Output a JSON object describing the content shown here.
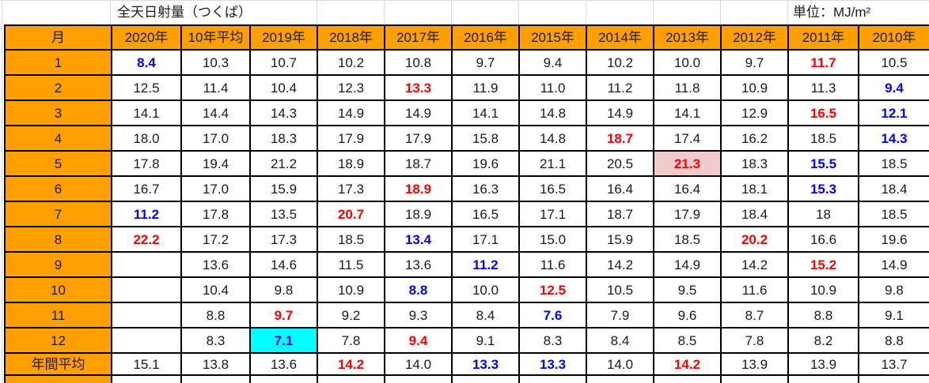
{
  "title": "全天日射量（つくば）",
  "unit_label": "単位：MJ/m²",
  "columns": [
    "月",
    "2020年",
    "10年平均",
    "2019年",
    "2018年",
    "2017年",
    "2016年",
    "2015年",
    "2014年",
    "2013年",
    "2012年",
    "2011年",
    "2010年"
  ],
  "rows": [
    {
      "label": "1",
      "cells": [
        [
          "8.4",
          "b"
        ],
        [
          "10.3",
          ""
        ],
        [
          "10.7",
          ""
        ],
        [
          "10.2",
          ""
        ],
        [
          "10.8",
          ""
        ],
        [
          "9.7",
          ""
        ],
        [
          "9.4",
          ""
        ],
        [
          "10.2",
          ""
        ],
        [
          "10.0",
          ""
        ],
        [
          "9.7",
          ""
        ],
        [
          "11.7",
          "r"
        ],
        [
          "10.5",
          ""
        ]
      ]
    },
    {
      "label": "2",
      "cells": [
        [
          "12.5",
          ""
        ],
        [
          "11.4",
          ""
        ],
        [
          "10.4",
          ""
        ],
        [
          "12.3",
          ""
        ],
        [
          "13.3",
          "r"
        ],
        [
          "11.9",
          ""
        ],
        [
          "11.0",
          ""
        ],
        [
          "11.2",
          ""
        ],
        [
          "11.8",
          ""
        ],
        [
          "10.9",
          ""
        ],
        [
          "11.3",
          ""
        ],
        [
          "9.4",
          "b"
        ]
      ]
    },
    {
      "label": "3",
      "cells": [
        [
          "14.1",
          ""
        ],
        [
          "14.4",
          ""
        ],
        [
          "14.3",
          ""
        ],
        [
          "14.9",
          ""
        ],
        [
          "14.9",
          ""
        ],
        [
          "14.1",
          ""
        ],
        [
          "14.8",
          ""
        ],
        [
          "14.9",
          ""
        ],
        [
          "14.1",
          ""
        ],
        [
          "12.9",
          ""
        ],
        [
          "16.5",
          "r"
        ],
        [
          "12.1",
          "b"
        ]
      ]
    },
    {
      "label": "4",
      "cells": [
        [
          "18.0",
          ""
        ],
        [
          "17.0",
          ""
        ],
        [
          "18.3",
          ""
        ],
        [
          "17.9",
          ""
        ],
        [
          "17.9",
          ""
        ],
        [
          "15.8",
          ""
        ],
        [
          "14.8",
          ""
        ],
        [
          "18.7",
          "r"
        ],
        [
          "17.4",
          ""
        ],
        [
          "16.2",
          ""
        ],
        [
          "18.5",
          ""
        ],
        [
          "14.3",
          "b"
        ]
      ]
    },
    {
      "label": "5",
      "cells": [
        [
          "17.8",
          ""
        ],
        [
          "19.4",
          ""
        ],
        [
          "21.2",
          ""
        ],
        [
          "18.9",
          ""
        ],
        [
          "18.7",
          ""
        ],
        [
          "19.6",
          ""
        ],
        [
          "21.1",
          ""
        ],
        [
          "20.5",
          ""
        ],
        [
          "21.3",
          "rp"
        ],
        [
          "18.3",
          ""
        ],
        [
          "15.5",
          "b"
        ],
        [
          "18.5",
          ""
        ]
      ]
    },
    {
      "label": "6",
      "cells": [
        [
          "16.7",
          ""
        ],
        [
          "17.0",
          ""
        ],
        [
          "15.9",
          ""
        ],
        [
          "17.3",
          ""
        ],
        [
          "18.9",
          "r"
        ],
        [
          "16.3",
          ""
        ],
        [
          "16.5",
          ""
        ],
        [
          "16.4",
          ""
        ],
        [
          "16.4",
          ""
        ],
        [
          "18.1",
          ""
        ],
        [
          "15.3",
          "b"
        ],
        [
          "18.4",
          ""
        ]
      ]
    },
    {
      "label": "7",
      "cells": [
        [
          "11.2",
          "b"
        ],
        [
          "17.8",
          ""
        ],
        [
          "13.5",
          ""
        ],
        [
          "20.7",
          "r"
        ],
        [
          "18.9",
          ""
        ],
        [
          "16.5",
          ""
        ],
        [
          "17.1",
          ""
        ],
        [
          "18.7",
          ""
        ],
        [
          "17.9",
          ""
        ],
        [
          "18.4",
          ""
        ],
        [
          "18",
          ""
        ],
        [
          "18.5",
          ""
        ]
      ]
    },
    {
      "label": "8",
      "cells": [
        [
          "22.2",
          "r"
        ],
        [
          "17.2",
          ""
        ],
        [
          "17.3",
          ""
        ],
        [
          "18.5",
          ""
        ],
        [
          "13.4",
          "b"
        ],
        [
          "17.1",
          ""
        ],
        [
          "15.0",
          ""
        ],
        [
          "15.9",
          ""
        ],
        [
          "18.5",
          ""
        ],
        [
          "20.2",
          "r"
        ],
        [
          "16.6",
          ""
        ],
        [
          "19.6",
          ""
        ]
      ]
    },
    {
      "label": "9",
      "cells": [
        [
          "",
          ""
        ],
        [
          "13.6",
          ""
        ],
        [
          "14.6",
          ""
        ],
        [
          "11.5",
          ""
        ],
        [
          "13.6",
          ""
        ],
        [
          "11.2",
          "b"
        ],
        [
          "11.6",
          ""
        ],
        [
          "14.2",
          ""
        ],
        [
          "14.9",
          ""
        ],
        [
          "14.2",
          ""
        ],
        [
          "15.2",
          "r"
        ],
        [
          "14.9",
          ""
        ]
      ]
    },
    {
      "label": "10",
      "cells": [
        [
          "",
          ""
        ],
        [
          "10.4",
          ""
        ],
        [
          "9.8",
          ""
        ],
        [
          "10.9",
          ""
        ],
        [
          "8.8",
          "b"
        ],
        [
          "10.0",
          ""
        ],
        [
          "12.5",
          "r"
        ],
        [
          "10.5",
          ""
        ],
        [
          "9.5",
          ""
        ],
        [
          "11.6",
          ""
        ],
        [
          "10.9",
          ""
        ],
        [
          "9.8",
          ""
        ]
      ]
    },
    {
      "label": "11",
      "cells": [
        [
          "",
          ""
        ],
        [
          "8.8",
          ""
        ],
        [
          "9.7",
          "r"
        ],
        [
          "9.2",
          ""
        ],
        [
          "9.3",
          ""
        ],
        [
          "8.4",
          ""
        ],
        [
          "7.6",
          "b"
        ],
        [
          "7.9",
          ""
        ],
        [
          "9.6",
          ""
        ],
        [
          "8.7",
          ""
        ],
        [
          "8.8",
          ""
        ],
        [
          "9.1",
          ""
        ]
      ]
    },
    {
      "label": "12",
      "cells": [
        [
          "",
          ""
        ],
        [
          "8.3",
          ""
        ],
        [
          "7.1",
          "bc"
        ],
        [
          "7.8",
          ""
        ],
        [
          "9.4",
          "r"
        ],
        [
          "9.1",
          ""
        ],
        [
          "8.3",
          ""
        ],
        [
          "8.4",
          ""
        ],
        [
          "8.5",
          ""
        ],
        [
          "7.8",
          ""
        ],
        [
          "8.2",
          ""
        ],
        [
          "8.8",
          ""
        ]
      ]
    },
    {
      "label": "年間平均",
      "cells": [
        [
          "15.1",
          ""
        ],
        [
          "13.8",
          ""
        ],
        [
          "13.6",
          ""
        ],
        [
          "14.2",
          "r"
        ],
        [
          "14.0",
          ""
        ],
        [
          "13.3",
          "b"
        ],
        [
          "13.3",
          "b"
        ],
        [
          "14.0",
          ""
        ],
        [
          "14.2",
          "r"
        ],
        [
          "13.9",
          ""
        ],
        [
          "13.9",
          ""
        ],
        [
          "13.7",
          ""
        ]
      ]
    }
  ],
  "colors": {
    "header_bg": "#FF9F00",
    "blue_text": "#0000FF",
    "red_text": "#FF0000",
    "pink_highlight_bg": "#F1CBCB",
    "cyan_highlight_bg": "#00FFFF",
    "border": "#000000",
    "gridline": "#D9D9D9"
  },
  "chart_data": {
    "type": "table",
    "title": "全天日射量（つくば）",
    "unit": "MJ/m²",
    "categories": [
      "1",
      "2",
      "3",
      "4",
      "5",
      "6",
      "7",
      "8",
      "9",
      "10",
      "11",
      "12",
      "年間平均"
    ],
    "series": [
      {
        "name": "2020年",
        "values": [
          8.4,
          12.5,
          14.1,
          18.0,
          17.8,
          16.7,
          11.2,
          22.2,
          null,
          null,
          null,
          null,
          15.1
        ]
      },
      {
        "name": "10年平均",
        "values": [
          10.3,
          11.4,
          14.4,
          17.0,
          19.4,
          17.0,
          17.8,
          17.2,
          13.6,
          10.4,
          8.8,
          8.3,
          13.8
        ]
      },
      {
        "name": "2019年",
        "values": [
          10.7,
          10.4,
          14.3,
          18.3,
          21.2,
          15.9,
          13.5,
          17.3,
          14.6,
          9.8,
          9.7,
          7.1,
          13.6
        ]
      },
      {
        "name": "2018年",
        "values": [
          10.2,
          12.3,
          14.9,
          17.9,
          18.9,
          17.3,
          20.7,
          18.5,
          11.5,
          10.9,
          9.2,
          7.8,
          14.2
        ]
      },
      {
        "name": "2017年",
        "values": [
          10.8,
          13.3,
          14.9,
          17.9,
          18.7,
          18.9,
          18.9,
          13.4,
          13.6,
          8.8,
          9.3,
          9.4,
          14.0
        ]
      },
      {
        "name": "2016年",
        "values": [
          9.7,
          11.9,
          14.1,
          15.8,
          19.6,
          16.3,
          16.5,
          17.1,
          11.2,
          10.0,
          8.4,
          9.1,
          13.3
        ]
      },
      {
        "name": "2015年",
        "values": [
          9.4,
          11.0,
          14.8,
          14.8,
          21.1,
          16.5,
          17.1,
          15.0,
          11.6,
          12.5,
          7.6,
          8.3,
          13.3
        ]
      },
      {
        "name": "2014年",
        "values": [
          10.2,
          11.2,
          14.9,
          18.7,
          20.5,
          16.4,
          18.7,
          15.9,
          14.2,
          10.5,
          7.9,
          8.4,
          14.0
        ]
      },
      {
        "name": "2013年",
        "values": [
          10.0,
          11.8,
          14.1,
          17.4,
          21.3,
          16.4,
          17.9,
          18.5,
          14.9,
          9.5,
          9.6,
          8.5,
          14.2
        ]
      },
      {
        "name": "2012年",
        "values": [
          9.7,
          10.9,
          12.9,
          16.2,
          18.3,
          18.1,
          18.4,
          20.2,
          14.2,
          11.6,
          8.7,
          7.8,
          13.9
        ]
      },
      {
        "name": "2011年",
        "values": [
          11.7,
          11.3,
          16.5,
          18.5,
          15.5,
          15.3,
          18,
          16.6,
          15.2,
          10.9,
          8.8,
          8.2,
          13.9
        ]
      },
      {
        "name": "2010年",
        "values": [
          10.5,
          9.4,
          12.1,
          14.3,
          18.5,
          18.4,
          18.5,
          19.6,
          14.9,
          9.8,
          9.1,
          8.8,
          13.7
        ]
      }
    ],
    "annotations": "blue bold = yearly minimum for month; red bold = yearly maximum; 21.3 (2013年5月) pink highlight; 7.1 (2019年12月) cyan highlight"
  }
}
